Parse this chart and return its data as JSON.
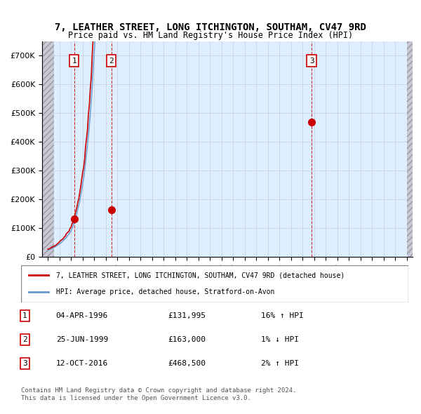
{
  "title": "7, LEATHER STREET, LONG ITCHINGTON, SOUTHAM, CV47 9RD",
  "subtitle": "Price paid vs. HM Land Registry's House Price Index (HPI)",
  "legend_line1": "7, LEATHER STREET, LONG ITCHINGTON, SOUTHAM, CV47 9RD (detached house)",
  "legend_line2": "HPI: Average price, detached house, Stratford-on-Avon",
  "sale_points": [
    {
      "date": 1996.27,
      "price": 131995,
      "label": "1"
    },
    {
      "date": 1999.48,
      "price": 163000,
      "label": "2"
    },
    {
      "date": 2016.78,
      "price": 468500,
      "label": "3"
    }
  ],
  "table_rows": [
    {
      "num": "1",
      "date": "04-APR-1996",
      "price": "£131,995",
      "note": "16% ↑ HPI"
    },
    {
      "num": "2",
      "date": "25-JUN-1999",
      "price": "£163,000",
      "note": "1% ↓ HPI"
    },
    {
      "num": "3",
      "date": "12-OCT-2016",
      "price": "£468,500",
      "note": "2% ↑ HPI"
    }
  ],
  "footnote1": "Contains HM Land Registry data © Crown copyright and database right 2024.",
  "footnote2": "This data is licensed under the Open Government Licence v3.0.",
  "xmin": 1993.5,
  "xmax": 2025.5,
  "ymin": 0,
  "ymax": 750000,
  "hpi_color": "#6699cc",
  "price_color": "#cc0000",
  "sale_marker_color": "#cc0000",
  "vline_color": "#cc0000",
  "highlight_color": "#ddeeff",
  "hatch_color": "#bbbbcc",
  "grid_color": "#ccccdd",
  "background_color": "#ffffff"
}
